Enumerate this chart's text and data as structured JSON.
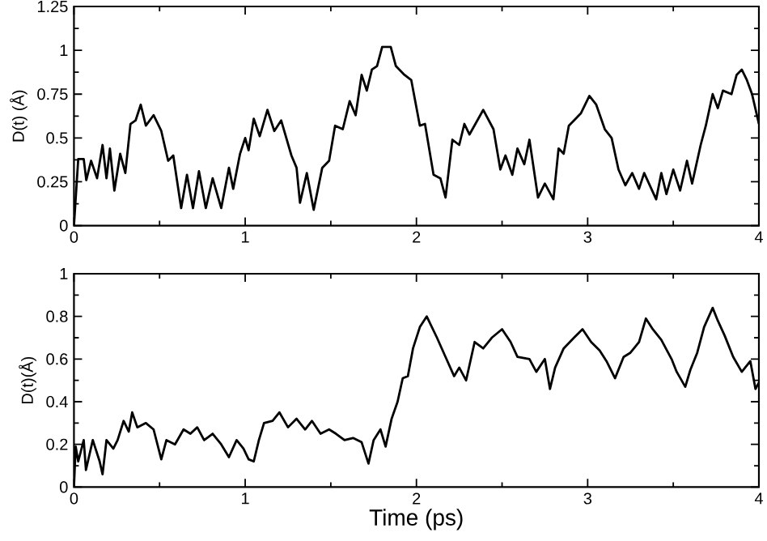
{
  "chart_data": [
    {
      "type": "line",
      "ylabel": "D(t) (Å)",
      "color": "#000000",
      "line_style": "solid",
      "xlim": [
        0,
        4
      ],
      "ylim": [
        0,
        1.25
      ],
      "xticks": [
        0,
        1,
        2,
        3,
        4
      ],
      "yticks": [
        0,
        0.25,
        0.5,
        0.75,
        1,
        1.25
      ],
      "x": [
        0,
        0.025,
        0.057,
        0.072,
        0.1,
        0.135,
        0.167,
        0.19,
        0.21,
        0.236,
        0.27,
        0.3,
        0.33,
        0.36,
        0.39,
        0.42,
        0.465,
        0.51,
        0.55,
        0.58,
        0.626,
        0.66,
        0.695,
        0.73,
        0.77,
        0.81,
        0.86,
        0.905,
        0.93,
        0.97,
        1.0,
        1.02,
        1.05,
        1.085,
        1.13,
        1.17,
        1.21,
        1.27,
        1.3,
        1.32,
        1.36,
        1.4,
        1.45,
        1.49,
        1.525,
        1.57,
        1.61,
        1.645,
        1.68,
        1.71,
        1.74,
        1.77,
        1.8,
        1.85,
        1.88,
        1.93,
        1.97,
        2.02,
        2.05,
        2.1,
        2.14,
        2.17,
        2.21,
        2.25,
        2.28,
        2.31,
        2.39,
        2.45,
        2.49,
        2.52,
        2.56,
        2.59,
        2.63,
        2.66,
        2.71,
        2.75,
        2.8,
        2.83,
        2.86,
        2.89,
        2.96,
        3.01,
        3.05,
        3.1,
        3.14,
        3.18,
        3.22,
        3.26,
        3.3,
        3.33,
        3.4,
        3.43,
        3.46,
        3.5,
        3.54,
        3.58,
        3.61,
        3.66,
        3.69,
        3.73,
        3.76,
        3.79,
        3.84,
        3.87,
        3.9,
        3.93,
        3.96,
        4.0
      ],
      "values": [
        0,
        0.38,
        0.38,
        0.26,
        0.37,
        0.27,
        0.46,
        0.27,
        0.44,
        0.2,
        0.41,
        0.3,
        0.58,
        0.6,
        0.69,
        0.57,
        0.63,
        0.54,
        0.37,
        0.4,
        0.1,
        0.29,
        0.1,
        0.31,
        0.1,
        0.27,
        0.1,
        0.33,
        0.21,
        0.41,
        0.5,
        0.43,
        0.61,
        0.51,
        0.66,
        0.54,
        0.6,
        0.4,
        0.33,
        0.13,
        0.3,
        0.09,
        0.33,
        0.37,
        0.57,
        0.55,
        0.71,
        0.63,
        0.86,
        0.77,
        0.89,
        0.91,
        1.02,
        1.02,
        0.91,
        0.86,
        0.83,
        0.57,
        0.58,
        0.29,
        0.27,
        0.16,
        0.49,
        0.46,
        0.58,
        0.52,
        0.66,
        0.55,
        0.32,
        0.4,
        0.29,
        0.44,
        0.35,
        0.49,
        0.16,
        0.24,
        0.15,
        0.44,
        0.41,
        0.57,
        0.64,
        0.74,
        0.69,
        0.55,
        0.5,
        0.32,
        0.23,
        0.3,
        0.21,
        0.3,
        0.15,
        0.3,
        0.18,
        0.32,
        0.2,
        0.37,
        0.24,
        0.46,
        0.57,
        0.75,
        0.67,
        0.77,
        0.75,
        0.86,
        0.89,
        0.83,
        0.75,
        0.58
      ]
    },
    {
      "type": "line",
      "xlabel": "Time (ps)",
      "ylabel": "D(t)(Å)",
      "color": "#000000",
      "line_style": "solid",
      "xlim": [
        0,
        4
      ],
      "ylim": [
        0,
        1
      ],
      "xticks": [
        0,
        1,
        2,
        3,
        4
      ],
      "yticks": [
        0,
        0.2,
        0.4,
        0.6,
        0.8,
        1
      ],
      "x": [
        0,
        0.01,
        0.025,
        0.057,
        0.07,
        0.11,
        0.15,
        0.167,
        0.19,
        0.23,
        0.255,
        0.29,
        0.32,
        0.34,
        0.37,
        0.42,
        0.465,
        0.51,
        0.54,
        0.59,
        0.64,
        0.68,
        0.72,
        0.76,
        0.81,
        0.86,
        0.905,
        0.95,
        0.99,
        1.02,
        1.05,
        1.08,
        1.11,
        1.16,
        1.2,
        1.25,
        1.3,
        1.35,
        1.39,
        1.44,
        1.49,
        1.53,
        1.58,
        1.63,
        1.68,
        1.72,
        1.75,
        1.79,
        1.82,
        1.855,
        1.89,
        1.92,
        1.95,
        1.98,
        2.02,
        2.06,
        2.09,
        2.12,
        2.17,
        2.22,
        2.25,
        2.29,
        2.34,
        2.39,
        2.44,
        2.5,
        2.55,
        2.59,
        2.66,
        2.7,
        2.75,
        2.78,
        2.81,
        2.86,
        2.92,
        2.97,
        3.02,
        3.07,
        3.11,
        3.16,
        3.21,
        3.25,
        3.3,
        3.34,
        3.38,
        3.43,
        3.49,
        3.52,
        3.57,
        3.6,
        3.64,
        3.68,
        3.73,
        3.76,
        3.8,
        3.85,
        3.9,
        3.95,
        3.98,
        4.0
      ],
      "values": [
        0,
        0.19,
        0.12,
        0.22,
        0.08,
        0.22,
        0.12,
        0.06,
        0.22,
        0.18,
        0.22,
        0.31,
        0.26,
        0.35,
        0.28,
        0.3,
        0.27,
        0.13,
        0.22,
        0.2,
        0.27,
        0.25,
        0.28,
        0.22,
        0.25,
        0.2,
        0.14,
        0.22,
        0.18,
        0.13,
        0.12,
        0.22,
        0.3,
        0.31,
        0.35,
        0.28,
        0.32,
        0.27,
        0.31,
        0.25,
        0.27,
        0.25,
        0.22,
        0.23,
        0.21,
        0.11,
        0.22,
        0.27,
        0.19,
        0.32,
        0.4,
        0.51,
        0.52,
        0.65,
        0.75,
        0.8,
        0.75,
        0.7,
        0.61,
        0.52,
        0.56,
        0.5,
        0.68,
        0.65,
        0.7,
        0.74,
        0.68,
        0.61,
        0.6,
        0.54,
        0.6,
        0.46,
        0.56,
        0.65,
        0.7,
        0.74,
        0.68,
        0.64,
        0.59,
        0.51,
        0.61,
        0.63,
        0.68,
        0.79,
        0.74,
        0.69,
        0.6,
        0.54,
        0.47,
        0.55,
        0.63,
        0.75,
        0.84,
        0.78,
        0.71,
        0.61,
        0.54,
        0.59,
        0.46,
        0.49
      ]
    }
  ]
}
